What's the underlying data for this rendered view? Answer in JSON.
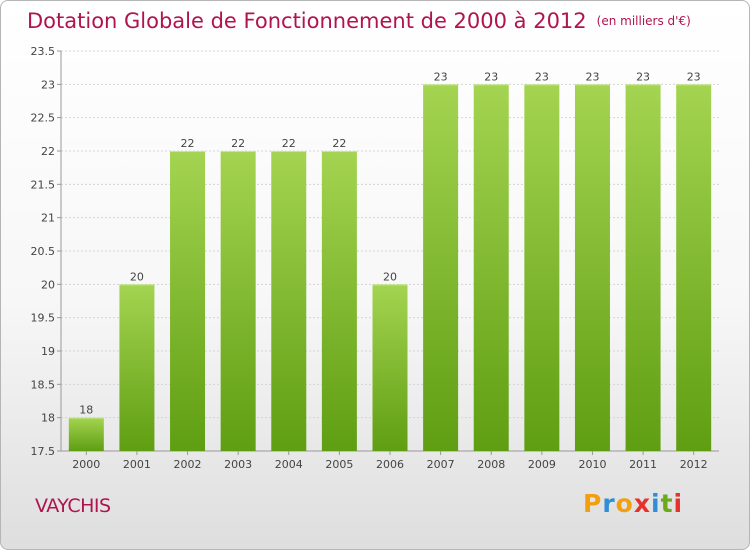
{
  "header": {
    "title": "Dotation Globale de Fonctionnement de 2000 à 2012",
    "unit": "(en milliers d'€)"
  },
  "footer": {
    "town": "VAYCHIS",
    "logo_text": "Proxiti"
  },
  "colors": {
    "title": "#b0144e",
    "bar_light": "#a4d451",
    "bar_dark": "#5f9e12",
    "logo_letters": [
      "#f2a010",
      "#2f8fd6",
      "#f2a010",
      "#e5332a",
      "#2f8fd6",
      "#6aab1c",
      "#e5332a"
    ]
  },
  "chart_data": {
    "type": "bar",
    "title": "Dotation Globale de Fonctionnement de 2000 à 2012",
    "subtitle": "(en milliers d'€)",
    "xlabel": "",
    "ylabel": "",
    "categories": [
      "2000",
      "2001",
      "2002",
      "2003",
      "2004",
      "2005",
      "2006",
      "2007",
      "2008",
      "2009",
      "2010",
      "2011",
      "2012"
    ],
    "values": [
      18,
      20,
      22,
      22,
      22,
      22,
      20,
      23,
      23,
      23,
      23,
      23,
      23
    ],
    "ylim": [
      17.5,
      23.5
    ],
    "yticks": [
      "17.5",
      "18",
      "18.5",
      "19",
      "19.5",
      "20",
      "20.5",
      "21",
      "21.5",
      "22",
      "22.5",
      "23",
      "23.5"
    ],
    "grid": true
  }
}
